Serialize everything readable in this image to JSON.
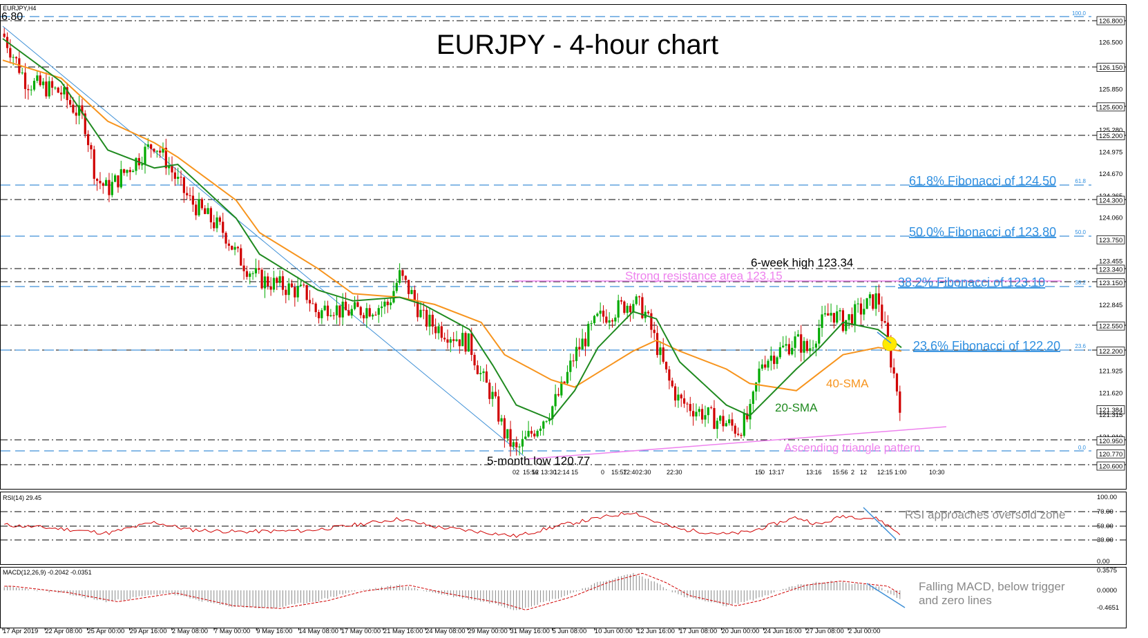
{
  "header": {
    "symbol": "EURJPY,H4",
    "corner_price": "6.80",
    "title": "EURJPY - 4-hour chart"
  },
  "colors": {
    "bull": "#00aa00",
    "bear": "#d00000",
    "sma20": "#1f8a1f",
    "sma40": "#f7941d",
    "fib": "#2f8fe0",
    "resistance": "#ee82ee",
    "rsi": "#d00000",
    "macd_hist": "#888888",
    "macd_signal": "#d00000"
  },
  "fib_scale": {
    "top": "100.0",
    "l618": "61.8",
    "l500": "50.0",
    "l382": "38.2",
    "l236": "23.6",
    "zero": "0.0"
  },
  "price_axis": [
    "126.800",
    "126.500",
    "126.150",
    "125.850",
    "125.600",
    "125.280",
    "125.200",
    "124.975",
    "124.670",
    "124.365",
    "124.300",
    "124.060",
    "123.750",
    "123.455",
    "123.340",
    "123.150",
    "122.845",
    "122.550",
    "122.200",
    "121.925",
    "121.620",
    "121.384",
    "121.315",
    "121.010",
    "120.950",
    "120.770",
    "120.600"
  ],
  "time_axis": [
    "17 Apr 2019",
    "22 Apr 08:00",
    "25 Apr 00:00",
    "29 Apr 16:00",
    "2 May 08:00",
    "7 May 00:00",
    "9 May 16:00",
    "14 May 08:00",
    "17 May 00:00",
    "21 May 16:00",
    "24 May 08:00",
    "29 May 00:00",
    "31 May 16:00",
    "5 Jun 08:00",
    "10 Jun 00:00",
    "12 Jun 16:00",
    "17 Jun 08:00",
    "20 Jun 00:00",
    "24 Jun 16:00",
    "27 Jun 08:00",
    "2 Jul 00:00"
  ],
  "stamps": [
    "02",
    "15:56",
    "12",
    "13:30",
    "12:14",
    "15",
    "0",
    "15:57",
    "12:40",
    "2:30",
    "22:30",
    "15",
    "0",
    "13:17",
    "13:16",
    "15:56",
    "2",
    "12",
    "12:15",
    "1:00",
    "10:30"
  ],
  "annotations": {
    "fib618": "61.8% Fibonacci of 124.50",
    "fib500": "50.0% Fibonacci of 123.80",
    "fib382": "38.2% Fibonacci of 123.10",
    "fib236": "23.6% Fibonacci of 122.20",
    "six_week_high": "6-week high 123.34",
    "resistance": "Strong resistance area 123.15",
    "five_month_low": "5-month low 120.77",
    "triangle": "Ascending triangle pattern",
    "sma40": "40-SMA",
    "sma20": "20-SMA"
  },
  "rsi": {
    "label": "RSI(14) 29.45",
    "levels": [
      "100.00",
      "70.00",
      "50.00",
      "30.00",
      "0.00"
    ],
    "note": "RSI approaches oversold zone"
  },
  "macd": {
    "label": "MACD(12,26,9) -0.2042 -0.0351",
    "levels": [
      "0.3575",
      "0.0000",
      "-0.4651"
    ],
    "note_line1": "Falling MACD, below trigger",
    "note_line2": "and zero lines"
  },
  "chart_data": {
    "type": "candlestick",
    "title": "EURJPY - 4-hour chart",
    "ylim": [
      120.6,
      126.8
    ],
    "levels": {
      "fib_618": 124.5,
      "fib_500": 123.8,
      "fib_382": 123.1,
      "fib_236": 122.2,
      "resistance": 123.15,
      "six_week_high": 123.34,
      "five_month_low": 120.77
    },
    "close_path": [
      [
        "17 Apr",
        126.62
      ],
      [
        "19 Apr",
        125.95
      ],
      [
        "22 Apr",
        125.8
      ],
      [
        "24 Apr",
        125.4
      ],
      [
        "25 Apr",
        124.6
      ],
      [
        "26 Apr",
        124.45
      ],
      [
        "29 Apr",
        124.95
      ],
      [
        "30 Apr",
        125.1
      ],
      [
        "1 May",
        124.85
      ],
      [
        "2 May",
        124.55
      ],
      [
        "3 May",
        124.3
      ],
      [
        "6 May",
        123.85
      ],
      [
        "7 May",
        123.55
      ],
      [
        "8 May",
        123.35
      ],
      [
        "9 May",
        123.2
      ],
      [
        "13 May",
        123.0
      ],
      [
        "14 May",
        122.7
      ],
      [
        "15 May",
        122.85
      ],
      [
        "16 May",
        122.75
      ],
      [
        "17 May",
        122.75
      ],
      [
        "20 May",
        122.85
      ],
      [
        "21 May",
        123.25
      ],
      [
        "22 May",
        123.0
      ],
      [
        "23 May",
        122.65
      ],
      [
        "24 May",
        122.55
      ],
      [
        "27 May",
        122.3
      ],
      [
        "28 May",
        121.85
      ],
      [
        "29 May",
        121.55
      ],
      [
        "30 May",
        121.05
      ],
      [
        "31 May",
        120.8
      ],
      [
        "3 Jun",
        121.4
      ],
      [
        "4 Jun",
        121.7
      ],
      [
        "5 Jun",
        122.15
      ],
      [
        "6 Jun",
        122.4
      ],
      [
        "7 Jun",
        122.65
      ],
      [
        "10 Jun",
        122.9
      ],
      [
        "11 Jun",
        122.75
      ],
      [
        "12 Jun",
        122.3
      ],
      [
        "13 Jun",
        121.8
      ],
      [
        "14 Jun",
        121.5
      ],
      [
        "17 Jun",
        121.25
      ],
      [
        "18 Jun",
        121.2
      ],
      [
        "19 Jun",
        121.1
      ],
      [
        "20 Jun",
        121.3
      ],
      [
        "21 Jun",
        122.05
      ],
      [
        "24 Jun",
        122.35
      ],
      [
        "25 Jun",
        122.2
      ],
      [
        "26 Jun",
        122.55
      ],
      [
        "27 Jun",
        122.75
      ],
      [
        "28 Jun",
        122.6
      ],
      [
        "1 Jul",
        122.95
      ],
      [
        "2 Jul",
        122.15
      ],
      [
        "3 Jul",
        121.38
      ]
    ],
    "sma20_path": [
      [
        "17 Apr",
        126.55
      ],
      [
        "22 Apr",
        125.95
      ],
      [
        "26 Apr",
        125.0
      ],
      [
        "30 Apr",
        124.75
      ],
      [
        "2 May",
        124.8
      ],
      [
        "7 May",
        124.05
      ],
      [
        "9 May",
        123.55
      ],
      [
        "14 May",
        123.05
      ],
      [
        "17 May",
        122.9
      ],
      [
        "21 May",
        122.95
      ],
      [
        "23 May",
        122.85
      ],
      [
        "27 May",
        122.5
      ],
      [
        "29 May",
        122.0
      ],
      [
        "31 May",
        121.45
      ],
      [
        "3 Jun",
        121.25
      ],
      [
        "5 Jun",
        121.65
      ],
      [
        "7 Jun",
        122.25
      ],
      [
        "10 Jun",
        122.75
      ],
      [
        "12 Jun",
        122.65
      ],
      [
        "14 Jun",
        122.05
      ],
      [
        "18 Jun",
        121.45
      ],
      [
        "20 Jun",
        121.3
      ],
      [
        "24 Jun",
        121.95
      ],
      [
        "26 Jun",
        122.25
      ],
      [
        "28 Jun",
        122.6
      ],
      [
        "1 Jul",
        122.5
      ],
      [
        "3 Jul",
        122.25
      ]
    ],
    "sma40_path": [
      [
        "17 Apr",
        126.25
      ],
      [
        "22 Apr",
        126.0
      ],
      [
        "26 Apr",
        125.4
      ],
      [
        "30 Apr",
        125.1
      ],
      [
        "2 May",
        124.9
      ],
      [
        "7 May",
        124.3
      ],
      [
        "9 May",
        123.85
      ],
      [
        "14 May",
        123.35
      ],
      [
        "17 May",
        123.0
      ],
      [
        "21 May",
        122.95
      ],
      [
        "24 May",
        122.85
      ],
      [
        "28 May",
        122.6
      ],
      [
        "30 May",
        122.15
      ],
      [
        "3 Jun",
        121.8
      ],
      [
        "5 Jun",
        121.7
      ],
      [
        "7 Jun",
        121.9
      ],
      [
        "10 Jun",
        122.2
      ],
      [
        "12 Jun",
        122.35
      ],
      [
        "14 Jun",
        122.2
      ],
      [
        "18 Jun",
        121.95
      ],
      [
        "20 Jun",
        121.75
      ],
      [
        "24 Jun",
        121.65
      ],
      [
        "26 Jun",
        121.9
      ],
      [
        "28 Jun",
        122.15
      ],
      [
        "1 Jul",
        122.25
      ],
      [
        "3 Jul",
        122.2
      ]
    ],
    "rsi_path": [
      [
        "17 Apr",
        50
      ],
      [
        "22 Apr",
        42
      ],
      [
        "26 Apr",
        33
      ],
      [
        "30 Apr",
        55
      ],
      [
        "3 May",
        40
      ],
      [
        "7 May",
        36
      ],
      [
        "13 May",
        38
      ],
      [
        "16 May",
        46
      ],
      [
        "21 May",
        62
      ],
      [
        "24 May",
        46
      ],
      [
        "29 May",
        33
      ],
      [
        "31 May",
        27
      ],
      [
        "4 Jun",
        50
      ],
      [
        "7 Jun",
        63
      ],
      [
        "10 Jun",
        76
      ],
      [
        "12 Jun",
        55
      ],
      [
        "14 Jun",
        41
      ],
      [
        "18 Jun",
        31
      ],
      [
        "20 Jun",
        36
      ],
      [
        "24 Jun",
        65
      ],
      [
        "26 Jun",
        50
      ],
      [
        "28 Jun",
        68
      ],
      [
        "1 Jul",
        62
      ],
      [
        "3 Jul",
        29.45
      ]
    ],
    "macd_path": [
      [
        "17 Apr",
        0.08
      ],
      [
        "22 Apr",
        -0.05
      ],
      [
        "26 Apr",
        -0.22
      ],
      [
        "1 May",
        -0.05
      ],
      [
        "6 May",
        -0.3
      ],
      [
        "10 May",
        -0.35
      ],
      [
        "14 May",
        -0.2
      ],
      [
        "17 May",
        -0.02
      ],
      [
        "21 May",
        0.1
      ],
      [
        "24 May",
        -0.05
      ],
      [
        "29 May",
        -0.25
      ],
      [
        "31 May",
        -0.38
      ],
      [
        "4 Jun",
        -0.12
      ],
      [
        "7 Jun",
        0.15
      ],
      [
        "10 Jun",
        0.33
      ],
      [
        "12 Jun",
        0.15
      ],
      [
        "14 Jun",
        -0.1
      ],
      [
        "18 Jun",
        -0.3
      ],
      [
        "20 Jun",
        -0.2
      ],
      [
        "24 Jun",
        0.1
      ],
      [
        "27 Jun",
        0.18
      ],
      [
        "1 Jul",
        0.08
      ],
      [
        "3 Jul",
        -0.2042
      ]
    ]
  }
}
